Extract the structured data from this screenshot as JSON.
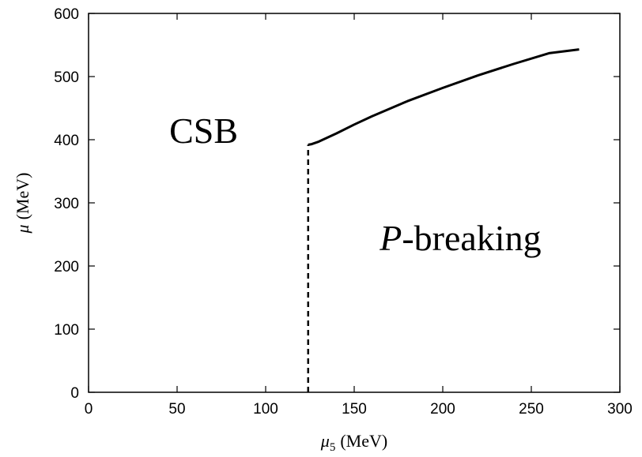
{
  "chart_data": {
    "type": "line",
    "xlabel_symbol": "μ",
    "xlabel_sub": "5",
    "xlabel_unit": "(MeV)",
    "ylabel_symbol": "μ",
    "ylabel_unit": "(MeV)",
    "xlim": [
      0,
      300
    ],
    "ylim": [
      0,
      600
    ],
    "xticks": [
      0,
      50,
      100,
      150,
      200,
      250,
      300
    ],
    "yticks": [
      0,
      100,
      200,
      300,
      400,
      500,
      600
    ],
    "grid": false,
    "series": [
      {
        "style": "solid",
        "x": [
          124,
          126,
          130,
          140,
          150,
          160,
          180,
          200,
          220,
          240,
          260,
          277
        ],
        "y": [
          392,
          393,
          397,
          410,
          424,
          437,
          461,
          482,
          502,
          520,
          537,
          543
        ]
      },
      {
        "style": "dashed",
        "x": [
          124,
          124
        ],
        "y": [
          0,
          392
        ]
      }
    ],
    "annotations": [
      {
        "text": "CSB",
        "x": 65,
        "y": 395
      },
      {
        "text_italic": "P",
        "text": "-breaking",
        "x": 210,
        "y": 225
      }
    ]
  }
}
